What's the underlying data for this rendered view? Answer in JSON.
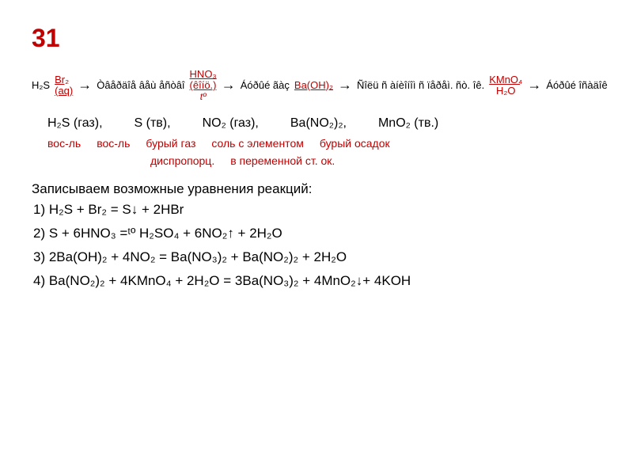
{
  "title": "31",
  "flow": {
    "start": "H₂S",
    "r1_top": "Br₂ (aq)",
    "p1": "Òâåðäîå âåù åñòâî",
    "r2_top": "HNO₃ (êîíö.)",
    "r2_bottom": "tº",
    "p2": "Áóðûé ãàç",
    "r3_top": "Ba(OH)₂",
    "p3": "Ñîëü ñ àíèîíîì ñ ïåðåì. ñò. îê.",
    "r4_top": "KMnO₄",
    "r4_bottom": "H₂O",
    "p4": "Áóðûé îñàäîê"
  },
  "row2": {
    "c1": "H₂S (газ),",
    "c2": "S (тв),",
    "c3": "NO₂ (газ),",
    "c4": "Ba(NO₂)₂,",
    "c5": "MnO₂ (тв.)"
  },
  "row3": {
    "c1": "вос-ль",
    "c2": "вос-ль",
    "c3": "бурый газ",
    "c4": "соль с элементом",
    "c5": "бурый осадок"
  },
  "row3b": {
    "c1": "диспропорц.",
    "c2": "в переменной ст. ок."
  },
  "intro": "Записываем возможные уравнения реакций:",
  "eq1": "1) H₂S + Br₂ = S↓ + 2HBr",
  "eq2": "2) S + 6HNO₃ =ᵗº H₂SO₄ + 6NO₂↑ + 2H₂O",
  "eq3": "3) 2Ba(OH)₂ + 4NO₂ = Ba(NO₃)₂ + Ba(NO₂)₂ + 2H₂O",
  "eq4": "4) Ba(NO₂)₂ + 4KMnO₄ + 2H₂O = 3Ba(NO₃)₂ + 4MnO₂↓+ 4KOH",
  "colors": {
    "title": "#c00000",
    "red": "#c00000",
    "text": "#000000",
    "bg": "#ffffff"
  }
}
